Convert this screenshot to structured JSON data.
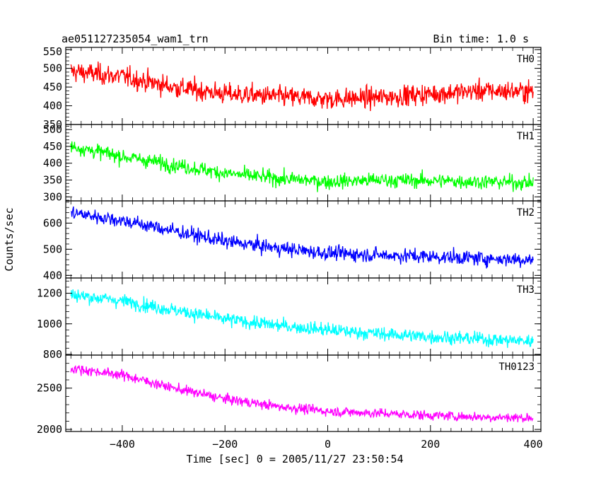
{
  "header": {
    "title": "ae051127235054_wam1_trn",
    "bin_time": "Bin time: 1.0 s"
  },
  "chart_data": {
    "type": "line",
    "xlabel": "Time [sec] 0 = 2005/11/27 23:50:54",
    "ylabel": "Counts/sec",
    "xlim": [
      -510,
      415
    ],
    "xticks": [
      -400,
      -200,
      0,
      200,
      400
    ],
    "xtick_labels": [
      "−400",
      "−200",
      "0",
      "200",
      "400"
    ],
    "bin_time_s": 1.0,
    "grid": false,
    "panels": [
      {
        "name": "TH0",
        "color": "#ff0000",
        "ylim": [
          350,
          556
        ],
        "yticks": [
          350,
          400,
          450,
          500,
          550
        ],
        "trend": [
          [
            -500,
            492
          ],
          [
            -400,
            478
          ],
          [
            -300,
            450
          ],
          [
            -200,
            432
          ],
          [
            -100,
            425
          ],
          [
            0,
            418
          ],
          [
            100,
            422
          ],
          [
            200,
            432
          ],
          [
            300,
            440
          ],
          [
            400,
            438
          ]
        ],
        "noise": 28
      },
      {
        "name": "TH1",
        "color": "#00ff00",
        "ylim": [
          288,
          515
        ],
        "yticks": [
          300,
          350,
          400,
          450,
          500
        ],
        "trend": [
          [
            -500,
            450
          ],
          [
            -400,
            420
          ],
          [
            -300,
            395
          ],
          [
            -200,
            370
          ],
          [
            -100,
            355
          ],
          [
            0,
            345
          ],
          [
            100,
            350
          ],
          [
            200,
            348
          ],
          [
            300,
            345
          ],
          [
            400,
            342
          ]
        ],
        "noise": 22
      },
      {
        "name": "TH2",
        "color": "#0000ff",
        "ylim": [
          390,
          685
        ],
        "yticks": [
          400,
          500,
          600
        ],
        "trend": [
          [
            -500,
            640
          ],
          [
            -400,
            610
          ],
          [
            -300,
            570
          ],
          [
            -200,
            530
          ],
          [
            -100,
            505
          ],
          [
            0,
            485
          ],
          [
            100,
            478
          ],
          [
            200,
            472
          ],
          [
            300,
            465
          ],
          [
            400,
            460
          ]
        ],
        "noise": 28
      },
      {
        "name": "TH3",
        "color": "#00ffff",
        "ylim": [
          795,
          1300
        ],
        "yticks": [
          800,
          1000,
          1200
        ],
        "trend": [
          [
            -500,
            1190
          ],
          [
            -400,
            1150
          ],
          [
            -300,
            1090
          ],
          [
            -200,
            1030
          ],
          [
            -100,
            990
          ],
          [
            0,
            960
          ],
          [
            100,
            935
          ],
          [
            200,
            915
          ],
          [
            300,
            900
          ],
          [
            400,
            885
          ]
        ],
        "noise": 45
      },
      {
        "name": "TH0123",
        "color": "#ff00ff",
        "ylim": [
          1975,
          2900
        ],
        "yticks": [
          2000,
          2500
        ],
        "trend": [
          [
            -500,
            2740
          ],
          [
            -400,
            2660
          ],
          [
            -300,
            2500
          ],
          [
            -200,
            2370
          ],
          [
            -100,
            2280
          ],
          [
            0,
            2220
          ],
          [
            100,
            2195
          ],
          [
            200,
            2170
          ],
          [
            300,
            2150
          ],
          [
            400,
            2140
          ]
        ],
        "noise": 60
      }
    ]
  }
}
